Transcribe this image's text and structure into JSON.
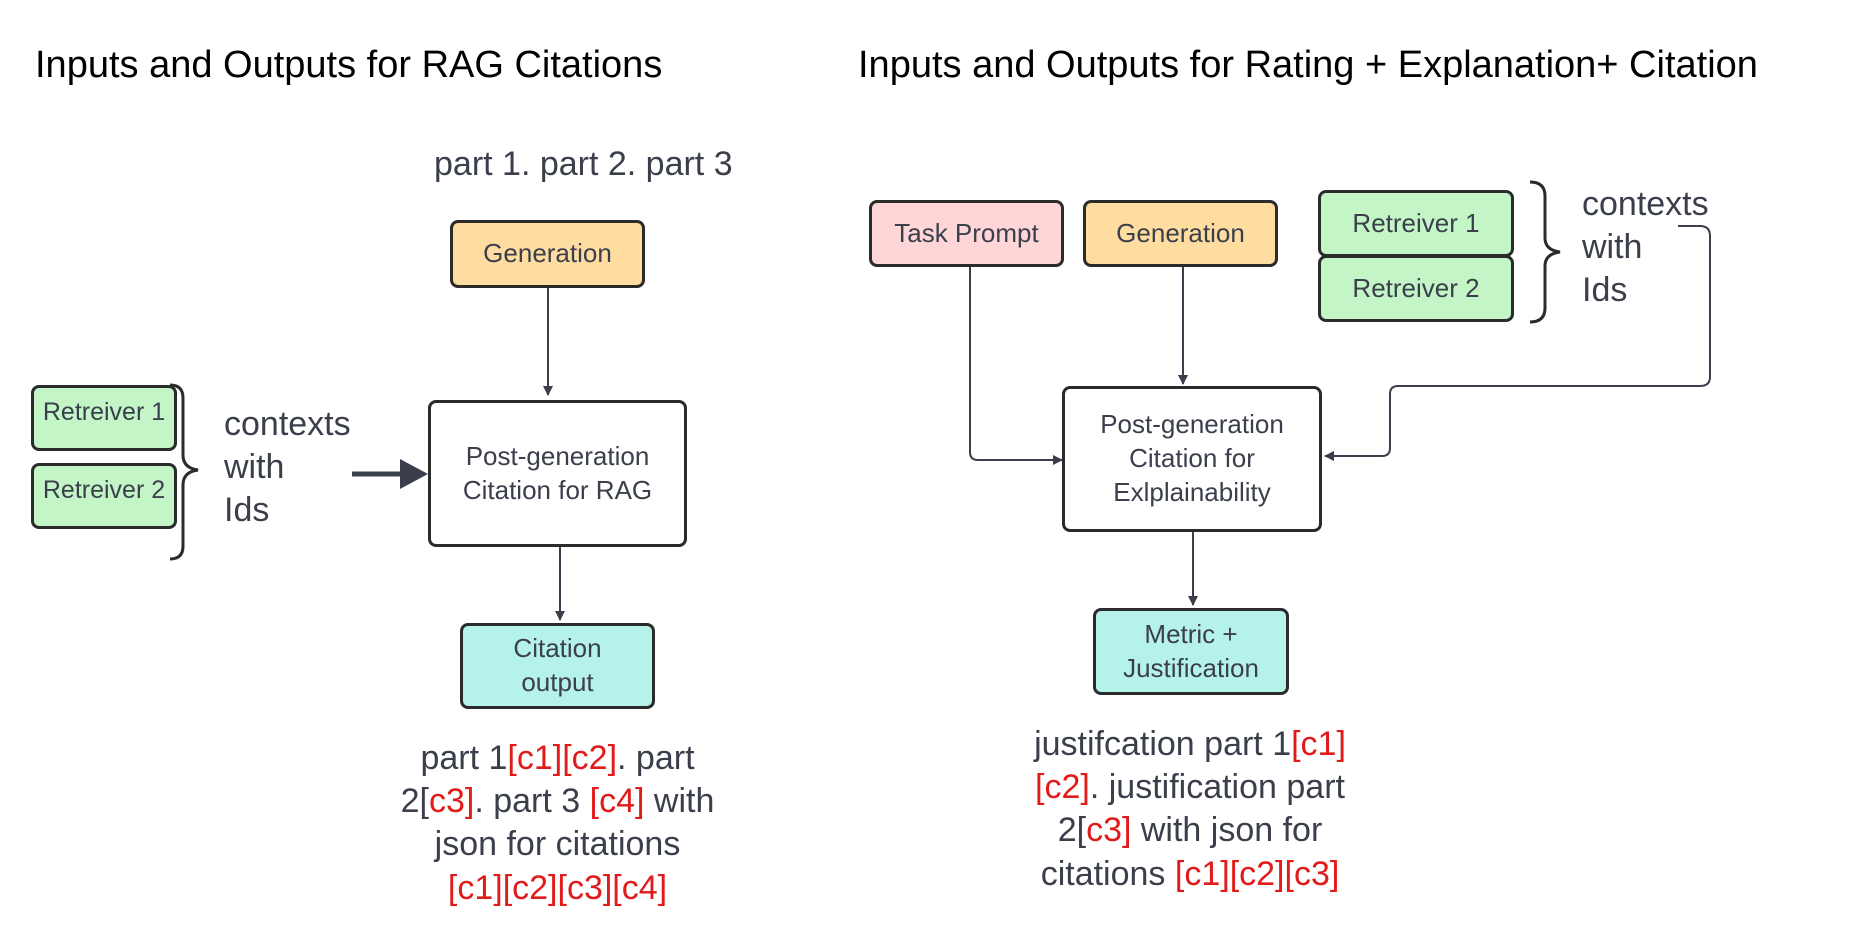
{
  "left": {
    "title": "Inputs and Outputs for RAG Citations",
    "parts_caption": "part 1. part 2. part 3",
    "generation": "Generation",
    "retriever1": "Retreiver 1",
    "retriever2": "Retreiver 2",
    "contexts": [
      "contexts",
      "with",
      "Ids"
    ],
    "process": "Post-generation Citation for RAG",
    "output": "Citation output",
    "result": {
      "s1": "part 1",
      "r1": "[c1][c2]",
      "s2": ". part 2[",
      "r2": "c3]",
      "s3": ". part 3 ",
      "r3": "[c4]",
      "s4": " with json for citations",
      "r4": "[c1][c2][c3][c4]"
    }
  },
  "right": {
    "title": "Inputs and Outputs for Rating + Explanation+ Citation",
    "task_prompt": "Task Prompt",
    "generation": "Generation",
    "retriever1": "Retreiver 1",
    "retriever2": "Retreiver 2",
    "contexts": [
      "contexts",
      "with",
      "Ids"
    ],
    "process": "Post-generation Citation for Exlplainability",
    "output": "Metric + Justification",
    "result": {
      "s1": "justifcation part 1",
      "r1": "[c1][c2]",
      "s2": ". justification part 2[",
      "r2": "c3]",
      "s3": " with json for citations ",
      "r3": "[c1][c2][c3]"
    }
  },
  "colors": {
    "generation": "#ffdca0",
    "task_prompt": "#ffd6d8",
    "retriever": "#c3f5c7",
    "output": "#b5f3ea",
    "citation_red": "#e11a1a"
  }
}
